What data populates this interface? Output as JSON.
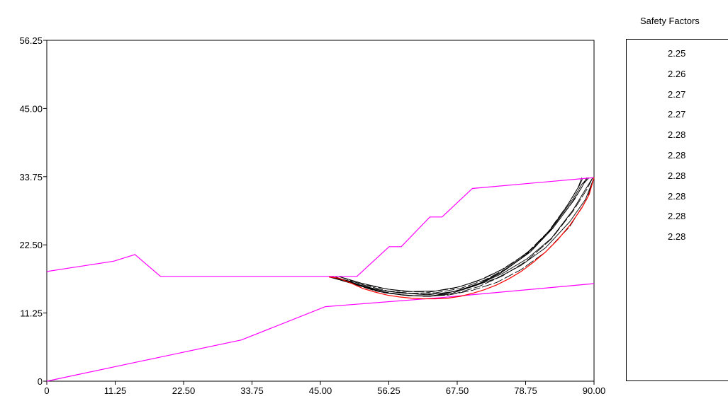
{
  "chart_data": {
    "type": "line",
    "title": "",
    "xlabel": "",
    "ylabel": "",
    "xlim": [
      0,
      90
    ],
    "ylim": [
      0,
      56.25
    ],
    "x_ticks": [
      "0",
      "11.25",
      "22.50",
      "33.75",
      "45.00",
      "56.25",
      "67.50",
      "78.75",
      "90.00"
    ],
    "y_ticks": [
      "0",
      "11.25",
      "22.50",
      "33.75",
      "45.00",
      "56.25"
    ],
    "x_tick_values": [
      0,
      11.25,
      22.5,
      33.75,
      45,
      56.25,
      67.5,
      78.75,
      90
    ],
    "y_tick_values": [
      0,
      11.25,
      22.5,
      33.75,
      45,
      56.25
    ],
    "grid": false,
    "colors": {
      "ground": "#ff00ff",
      "critical": "#ff0000",
      "trial": "#000000",
      "frame": "#000000"
    },
    "series": [
      {
        "role": "ground_surface",
        "color": "#ff00ff",
        "points": [
          [
            0,
            18.1
          ],
          [
            11,
            19.8
          ],
          [
            14.5,
            20.9
          ],
          [
            18.7,
            17.3
          ],
          [
            51,
            17.3
          ],
          [
            56.3,
            22.2
          ],
          [
            58.3,
            22.2
          ],
          [
            63,
            27.1
          ],
          [
            65,
            27.1
          ],
          [
            70,
            31.8
          ],
          [
            90,
            33.6
          ]
        ]
      },
      {
        "role": "stratum_boundary",
        "color": "#ff00ff",
        "points": [
          [
            0,
            0
          ],
          [
            15,
            3.2
          ],
          [
            32,
            6.8
          ],
          [
            45.8,
            12.3
          ],
          [
            65,
            13.8
          ],
          [
            90,
            16.1
          ]
        ]
      },
      {
        "role": "critical_slip_surface",
        "color": "#ff0000",
        "points": [
          [
            46.4,
            17.2
          ],
          [
            48,
            17
          ],
          [
            50,
            16.2
          ],
          [
            52,
            15.3
          ],
          [
            54,
            14.7
          ],
          [
            56,
            14.2
          ],
          [
            58,
            13.9
          ],
          [
            60,
            13.7
          ],
          [
            62,
            13.6
          ],
          [
            64,
            13.6
          ],
          [
            66,
            13.7
          ],
          [
            68,
            14
          ],
          [
            70,
            14.5
          ],
          [
            72,
            15.1
          ],
          [
            74,
            15.9
          ],
          [
            76,
            16.9
          ],
          [
            78,
            18.1
          ],
          [
            80,
            19.6
          ],
          [
            82,
            21.3
          ],
          [
            84,
            23.3
          ],
          [
            86,
            25.7
          ],
          [
            88,
            28.6
          ],
          [
            89.2,
            30.8
          ],
          [
            90,
            33.6
          ]
        ]
      },
      {
        "role": "trial_slip_surface",
        "color": "#000000",
        "points": [
          [
            46.4,
            17.2
          ],
          [
            50,
            16.4
          ],
          [
            54,
            15.1
          ],
          [
            58,
            14.6
          ],
          [
            62,
            14.3
          ],
          [
            66,
            14.6
          ],
          [
            70,
            15.6
          ],
          [
            74,
            17
          ],
          [
            78,
            19.1
          ],
          [
            82,
            22
          ],
          [
            86,
            26.3
          ],
          [
            88.6,
            30
          ],
          [
            90,
            33.6
          ]
        ]
      },
      {
        "role": "trial_slip_surface",
        "color": "#000000",
        "points": [
          [
            46.4,
            17.2
          ],
          [
            50,
            16.2
          ],
          [
            54,
            14.9
          ],
          [
            58,
            14.3
          ],
          [
            62,
            14
          ],
          [
            66,
            14.2
          ],
          [
            70,
            15
          ],
          [
            74,
            16.3
          ],
          [
            78,
            18.4
          ],
          [
            82,
            21.3
          ],
          [
            86,
            25.5
          ],
          [
            88.8,
            30
          ],
          [
            90,
            33.6
          ]
        ]
      },
      {
        "role": "trial_slip_surface",
        "color": "#000000",
        "points": [
          [
            47,
            17.2
          ],
          [
            51,
            16
          ],
          [
            55,
            15
          ],
          [
            59,
            14.5
          ],
          [
            63,
            14.3
          ],
          [
            67,
            14.8
          ],
          [
            71,
            16
          ],
          [
            75,
            17.8
          ],
          [
            79,
            20.2
          ],
          [
            83,
            23.6
          ],
          [
            86.5,
            28.2
          ],
          [
            88.5,
            31.5
          ],
          [
            89.8,
            33.6
          ]
        ]
      },
      {
        "role": "trial_slip_surface",
        "color": "#000000",
        "points": [
          [
            47,
            17.2
          ],
          [
            51,
            15.9
          ],
          [
            55,
            14.8
          ],
          [
            59,
            14.2
          ],
          [
            63,
            14
          ],
          [
            67,
            14.4
          ],
          [
            71,
            15.6
          ],
          [
            75,
            17.4
          ],
          [
            79,
            19.9
          ],
          [
            83,
            23.5
          ],
          [
            86.5,
            28
          ],
          [
            88.8,
            31.6
          ],
          [
            89.8,
            33.6
          ]
        ]
      },
      {
        "role": "trial_slip_surface",
        "color": "#000000",
        "points": [
          [
            48,
            17.3
          ],
          [
            52,
            16.1
          ],
          [
            56,
            15.2
          ],
          [
            60,
            14.8
          ],
          [
            64,
            14.9
          ],
          [
            68,
            15.6
          ],
          [
            72,
            17
          ],
          [
            76,
            19
          ],
          [
            80,
            22
          ],
          [
            83.5,
            25.8
          ],
          [
            86.5,
            30
          ],
          [
            88,
            32.5
          ],
          [
            89,
            33.6
          ]
        ]
      },
      {
        "role": "trial_slip_surface",
        "color": "#000000",
        "points": [
          [
            48,
            17.3
          ],
          [
            52,
            15.9
          ],
          [
            56,
            14.9
          ],
          [
            60,
            14.5
          ],
          [
            64,
            14.6
          ],
          [
            68,
            15.3
          ],
          [
            72,
            16.7
          ],
          [
            76,
            18.8
          ],
          [
            80,
            21.8
          ],
          [
            83.5,
            25.6
          ],
          [
            86.8,
            30
          ],
          [
            88.3,
            32.6
          ],
          [
            89.2,
            33.6
          ]
        ]
      },
      {
        "role": "trial_slip_surface",
        "color": "#000000",
        "points": [
          [
            47.5,
            17.2
          ],
          [
            51.5,
            15.8
          ],
          [
            55.5,
            14.6
          ],
          [
            59.5,
            14.1
          ],
          [
            63.5,
            14.1
          ],
          [
            67.5,
            14.9
          ],
          [
            71.5,
            16.3
          ],
          [
            75.5,
            18.4
          ],
          [
            79.5,
            21.3
          ],
          [
            83.2,
            25.2
          ],
          [
            86.3,
            29.4
          ],
          [
            88,
            32
          ],
          [
            88.8,
            33.6
          ]
        ]
      },
      {
        "role": "trial_slip_surface",
        "color": "#000000",
        "points": [
          [
            46.8,
            17.2
          ],
          [
            50.8,
            16.3
          ],
          [
            54.8,
            15.4
          ],
          [
            58.8,
            14.8
          ],
          [
            62.8,
            14.7
          ],
          [
            66.8,
            15.3
          ],
          [
            70.8,
            16.5
          ],
          [
            74.8,
            18.4
          ],
          [
            78.8,
            21
          ],
          [
            82.5,
            24.7
          ],
          [
            85.8,
            29.3
          ],
          [
            87.5,
            32.1
          ],
          [
            88.2,
            33.6
          ]
        ]
      },
      {
        "role": "trial_slip_surface",
        "color": "#000000",
        "points": [
          [
            46.6,
            17.2
          ],
          [
            50.6,
            16
          ],
          [
            54.6,
            14.8
          ],
          [
            58.6,
            14.2
          ],
          [
            62.6,
            14
          ],
          [
            66.6,
            14.5
          ],
          [
            70.6,
            15.8
          ],
          [
            74.6,
            17.8
          ],
          [
            78.6,
            20.7
          ],
          [
            82.4,
            24.4
          ],
          [
            85.6,
            29
          ],
          [
            87.4,
            32
          ],
          [
            88,
            33.6
          ]
        ]
      }
    ]
  },
  "safety_factors": {
    "title": "Safety Factors",
    "values": [
      "2.25",
      "2.26",
      "2.27",
      "2.27",
      "2.28",
      "2.28",
      "2.28",
      "2.28",
      "2.28",
      "2.28"
    ]
  }
}
